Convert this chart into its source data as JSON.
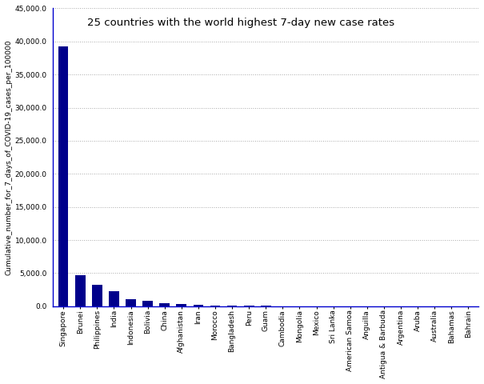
{
  "title": "25 countries with the world highest 7-day new case rates",
  "ylabel": "Cumulative_number_for_7_days_of_COVID-19_cases_per_100000",
  "countries": [
    "Singapore",
    "Brunei",
    "Philippines",
    "India",
    "Indonesia",
    "Bolivia",
    "China",
    "Afghanistan",
    "Iran",
    "Morocco",
    "Bangladesh",
    "Peru",
    "Guam",
    "Cambodia",
    "Mongolia",
    "Mexico",
    "Sri Lanka",
    "American Samoa",
    "Anguilla",
    "Antigua & Barbuda",
    "Argentina",
    "Aruba",
    "Australia",
    "Bahamas",
    "Bahrain"
  ],
  "values": [
    39200,
    4700,
    3200,
    2300,
    1100,
    850,
    500,
    300,
    175,
    115,
    45,
    38,
    32,
    28,
    22,
    18,
    16,
    13,
    11,
    9,
    8,
    7,
    6,
    5,
    4
  ],
  "bar_color": "#00008B",
  "ylim": [
    0,
    45000
  ],
  "yticks": [
    0,
    5000,
    10000,
    15000,
    20000,
    25000,
    30000,
    35000,
    40000,
    45000
  ],
  "background_color": "#ffffff",
  "title_fontsize": 9.5,
  "ylabel_fontsize": 6.5,
  "tick_fontsize": 6.5,
  "spine_color": "#0000CD"
}
